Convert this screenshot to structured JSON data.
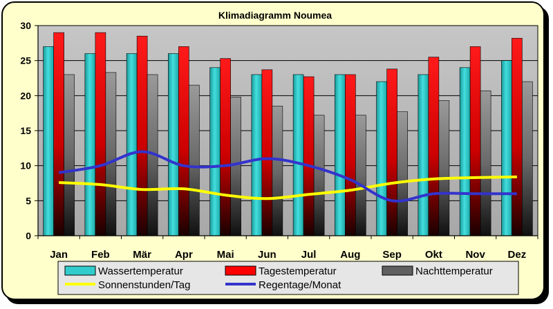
{
  "chart_data": {
    "type": "bar",
    "title": "Klimadiagramm Noumea",
    "categories": [
      "Jan",
      "Feb",
      "Mär",
      "Apr",
      "Mai",
      "Jun",
      "Jul",
      "Aug",
      "Sep",
      "Okt",
      "Nov",
      "Dez"
    ],
    "ylim": [
      0,
      30
    ],
    "yticks": [
      0,
      5,
      10,
      15,
      20,
      25,
      30
    ],
    "grid": true,
    "legend_position": "bottom",
    "bar_series": [
      {
        "name": "Wassertemperatur",
        "color": "#33cccc",
        "values": [
          27,
          26,
          26,
          26,
          24,
          23,
          23,
          23,
          22,
          23,
          24,
          25
        ]
      },
      {
        "name": "Tagestemperatur",
        "color": "#ff0000",
        "values": [
          29,
          29,
          28.5,
          27,
          25.3,
          23.7,
          22.7,
          23,
          23.8,
          25.5,
          27,
          28.2
        ]
      },
      {
        "name": "Nachttemperatur",
        "color": "#808080",
        "values": [
          23,
          23.3,
          23,
          21.5,
          19.8,
          18.5,
          17.2,
          17.2,
          17.7,
          19.3,
          20.7,
          22
        ]
      }
    ],
    "line_series": [
      {
        "name": "Sonnenstunden/Tag",
        "color": "#ffff00",
        "values": [
          7.6,
          7.3,
          6.6,
          6.7,
          5.8,
          5.3,
          5.9,
          6.5,
          7.5,
          8.1,
          8.3,
          8.4
        ]
      },
      {
        "name": "Regentage/Monat",
        "color": "#3333cc",
        "values": [
          9,
          10,
          12,
          10,
          10,
          11,
          10,
          8,
          5,
          6,
          6,
          6
        ]
      }
    ]
  }
}
